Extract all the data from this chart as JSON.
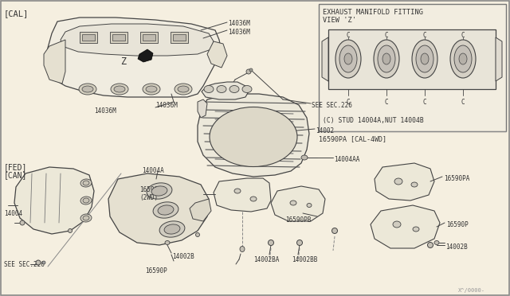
{
  "bg_color": "#f5efe0",
  "line_color": "#444444",
  "text_color": "#333333",
  "labels": {
    "cal_tag": "[CAL]",
    "fed_can_tag": "[FED]\n[CAN]",
    "inset_title_l1": "EXHAUST MANIFOLD FITTING",
    "inset_title_l2": "VIEW 'Z'",
    "inset_note": "(C) STUD 14004A,NUT 14004B",
    "part_16590PA_cal4wd": "16590PA [CAL-4WD]",
    "watermark": "X^/0000-"
  }
}
